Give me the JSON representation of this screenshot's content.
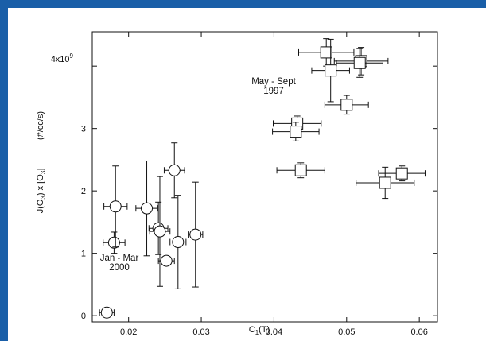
{
  "chart_data": {
    "type": "scatter",
    "title": "",
    "xlabel": "C",
    "xlabel_sub": "1",
    "xlabel_tail": "(T)",
    "ylabel_parts": [
      "J(O",
      "3",
      ") x [O",
      "3",
      "]"
    ],
    "ylabel_units": "(#/cc/s)",
    "xlim": [
      0.015,
      0.0625
    ],
    "ylim": [
      -0.1,
      4.55
    ],
    "x_ticks": [
      0.02,
      0.03,
      0.04,
      0.05,
      0.06
    ],
    "x_tick_labels": [
      "0.02",
      "0.03",
      "0.04",
      "0.05",
      "0.06"
    ],
    "y_ticks": [
      0,
      1,
      2,
      3,
      4
    ],
    "y_tick_labels": [
      "0",
      "1",
      "2",
      "3",
      ""
    ],
    "y_top_label_base": "4x10",
    "y_top_label_exp": "9",
    "series": [
      {
        "marker": "circle",
        "annotation": [
          "Jan - Mar",
          "2000"
        ],
        "points": [
          {
            "x": 0.017,
            "y": 0.05,
            "xerr": 0.001,
            "yerr": 0.0
          },
          {
            "x": 0.018,
            "y": 1.17,
            "xerr": 0.0015,
            "yerr": 0.17
          },
          {
            "x": 0.0182,
            "y": 1.75,
            "xerr": 0.0016,
            "yerr": 0.65
          },
          {
            "x": 0.0225,
            "y": 1.72,
            "xerr": 0.0015,
            "yerr": 0.76
          },
          {
            "x": 0.0241,
            "y": 1.4,
            "xerr": 0.0013,
            "yerr": 0.42
          },
          {
            "x": 0.0243,
            "y": 1.35,
            "xerr": 0.0014,
            "yerr": 0.88
          },
          {
            "x": 0.0263,
            "y": 2.33,
            "xerr": 0.0014,
            "yerr": 0.44
          },
          {
            "x": 0.0252,
            "y": 0.88,
            "xerr": 0.0011,
            "yerr": 0.0
          },
          {
            "x": 0.0268,
            "y": 1.18,
            "xerr": 0.0011,
            "yerr": 0.75
          },
          {
            "x": 0.0292,
            "y": 1.3,
            "xerr": 0.001,
            "yerr": 0.84
          }
        ]
      },
      {
        "marker": "square",
        "annotation": [
          "May - Sept",
          "1997"
        ],
        "points": [
          {
            "x": 0.0472,
            "y": 4.22,
            "xerr": 0.0038,
            "yerr": 0.22
          },
          {
            "x": 0.0478,
            "y": 3.93,
            "xerr": 0.0026,
            "yerr": 0.5
          },
          {
            "x": 0.052,
            "y": 4.08,
            "xerr": 0.0037,
            "yerr": 0.22
          },
          {
            "x": 0.0518,
            "y": 4.05,
            "xerr": 0.0032,
            "yerr": 0.23
          },
          {
            "x": 0.05,
            "y": 3.38,
            "xerr": 0.003,
            "yerr": 0.15
          },
          {
            "x": 0.0432,
            "y": 3.08,
            "xerr": 0.0033,
            "yerr": 0.12
          },
          {
            "x": 0.043,
            "y": 2.95,
            "xerr": 0.0032,
            "yerr": 0.15
          },
          {
            "x": 0.0437,
            "y": 2.33,
            "xerr": 0.0033,
            "yerr": 0.12
          },
          {
            "x": 0.0553,
            "y": 2.13,
            "xerr": 0.004,
            "yerr": 0.25
          },
          {
            "x": 0.0576,
            "y": 2.28,
            "xerr": 0.0032,
            "yerr": 0.12
          }
        ]
      }
    ]
  }
}
